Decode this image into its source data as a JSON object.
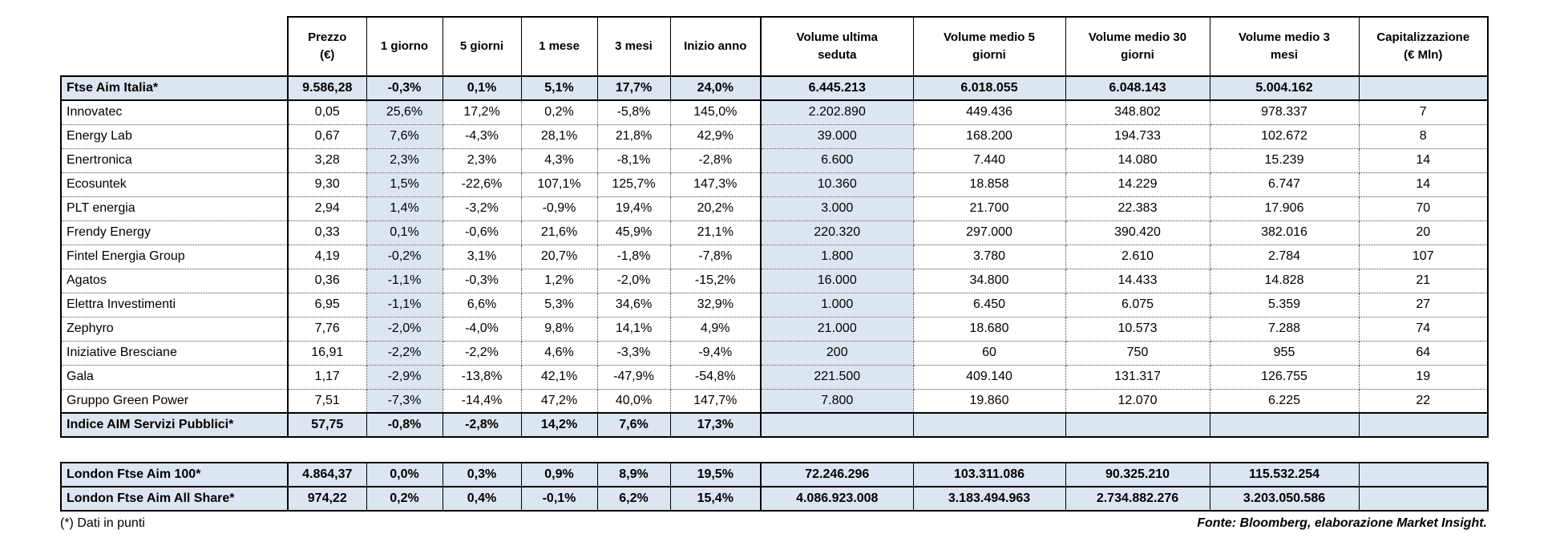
{
  "colors": {
    "row_highlight": "#dce6f1",
    "border": "#000000",
    "background": "#ffffff"
  },
  "table": {
    "column_headers": [
      [
        "Prezzo",
        "(€)"
      ],
      [
        "1 giorno"
      ],
      [
        "5 giorni"
      ],
      [
        "1 mese"
      ],
      [
        "3 mesi"
      ],
      [
        "Inizio anno"
      ],
      [
        "Volume ultima",
        "seduta"
      ],
      [
        "Volume medio 5",
        "giorni"
      ],
      [
        "Volume medio 30",
        "giorni"
      ],
      [
        "Volume medio 3",
        "mesi"
      ],
      [
        "Capitalizzazione",
        "(€ Mln)"
      ]
    ],
    "main_rows": [
      {
        "name": "Ftse Aim Italia*",
        "highlight": true,
        "values": [
          "9.586,28",
          "-0,3%",
          "0,1%",
          "5,1%",
          "17,7%",
          "24,0%",
          "6.445.213",
          "6.018.055",
          "6.048.143",
          "5.004.162",
          ""
        ]
      },
      {
        "name": "Innovatec",
        "highlight": false,
        "values": [
          "0,05",
          "25,6%",
          "17,2%",
          "0,2%",
          "-5,8%",
          "145,0%",
          "2.202.890",
          "449.436",
          "348.802",
          "978.337",
          "7"
        ]
      },
      {
        "name": "Energy Lab",
        "highlight": false,
        "values": [
          "0,67",
          "7,6%",
          "-4,3%",
          "28,1%",
          "21,8%",
          "42,9%",
          "39.000",
          "168.200",
          "194.733",
          "102.672",
          "8"
        ]
      },
      {
        "name": "Enertronica",
        "highlight": false,
        "values": [
          "3,28",
          "2,3%",
          "2,3%",
          "4,3%",
          "-8,1%",
          "-2,8%",
          "6.600",
          "7.440",
          "14.080",
          "15.239",
          "14"
        ]
      },
      {
        "name": "Ecosuntek",
        "highlight": false,
        "values": [
          "9,30",
          "1,5%",
          "-22,6%",
          "107,1%",
          "125,7%",
          "147,3%",
          "10.360",
          "18.858",
          "14.229",
          "6.747",
          "14"
        ]
      },
      {
        "name": "PLT energia",
        "highlight": false,
        "values": [
          "2,94",
          "1,4%",
          "-3,2%",
          "-0,9%",
          "19,4%",
          "20,2%",
          "3.000",
          "21.700",
          "22.383",
          "17.906",
          "70"
        ]
      },
      {
        "name": "Frendy Energy",
        "highlight": false,
        "values": [
          "0,33",
          "0,1%",
          "-0,6%",
          "21,6%",
          "45,9%",
          "21,1%",
          "220.320",
          "297.000",
          "390.420",
          "382.016",
          "20"
        ]
      },
      {
        "name": "Fintel Energia Group",
        "highlight": false,
        "values": [
          "4,19",
          "-0,2%",
          "3,1%",
          "20,7%",
          "-1,8%",
          "-7,8%",
          "1.800",
          "3.780",
          "2.610",
          "2.784",
          "107"
        ]
      },
      {
        "name": "Agatos",
        "highlight": false,
        "values": [
          "0,36",
          "-1,1%",
          "-0,3%",
          "1,2%",
          "-2,0%",
          "-15,2%",
          "16.000",
          "34.800",
          "14.433",
          "14.828",
          "21"
        ]
      },
      {
        "name": "Elettra Investimenti",
        "highlight": false,
        "values": [
          "6,95",
          "-1,1%",
          "6,6%",
          "5,3%",
          "34,6%",
          "32,9%",
          "1.000",
          "6.450",
          "6.075",
          "5.359",
          "27"
        ]
      },
      {
        "name": "Zephyro",
        "highlight": false,
        "values": [
          "7,76",
          "-2,0%",
          "-4,0%",
          "9,8%",
          "14,1%",
          "4,9%",
          "21.000",
          "18.680",
          "10.573",
          "7.288",
          "74"
        ]
      },
      {
        "name": "Iniziative Bresciane",
        "highlight": false,
        "values": [
          "16,91",
          "-2,2%",
          "-2,2%",
          "4,6%",
          "-3,3%",
          "-9,4%",
          "200",
          "60",
          "750",
          "955",
          "64"
        ]
      },
      {
        "name": "Gala",
        "highlight": false,
        "values": [
          "1,17",
          "-2,9%",
          "-13,8%",
          "42,1%",
          "-47,9%",
          "-54,8%",
          "221.500",
          "409.140",
          "131.317",
          "126.755",
          "19"
        ]
      },
      {
        "name": "Gruppo Green Power",
        "highlight": false,
        "values": [
          "7,51",
          "-7,3%",
          "-14,4%",
          "47,2%",
          "40,0%",
          "147,7%",
          "7.800",
          "19.860",
          "12.070",
          "6.225",
          "22"
        ]
      },
      {
        "name": "Indice AIM Servizi Pubblici*",
        "highlight": true,
        "values": [
          "57,75",
          "-0,8%",
          "-2,8%",
          "14,2%",
          "7,6%",
          "17,3%",
          "",
          "",
          "",
          "",
          ""
        ]
      }
    ],
    "london_rows": [
      {
        "name": "London Ftse Aim 100*",
        "highlight": true,
        "values": [
          "4.864,37",
          "0,0%",
          "0,3%",
          "0,9%",
          "8,9%",
          "19,5%",
          "72.246.296",
          "103.311.086",
          "90.325.210",
          "115.532.254",
          ""
        ]
      },
      {
        "name": "London Ftse Aim All Share*",
        "highlight": true,
        "values": [
          "974,22",
          "0,2%",
          "0,4%",
          "-0,1%",
          "6,2%",
          "15,4%",
          "4.086.923.008",
          "3.183.494.963",
          "2.734.882.276",
          "3.203.050.586",
          ""
        ]
      }
    ]
  },
  "footer": {
    "note": "(*) Dati in punti",
    "source": "Fonte: Bloomberg, elaborazione Market Insight."
  }
}
